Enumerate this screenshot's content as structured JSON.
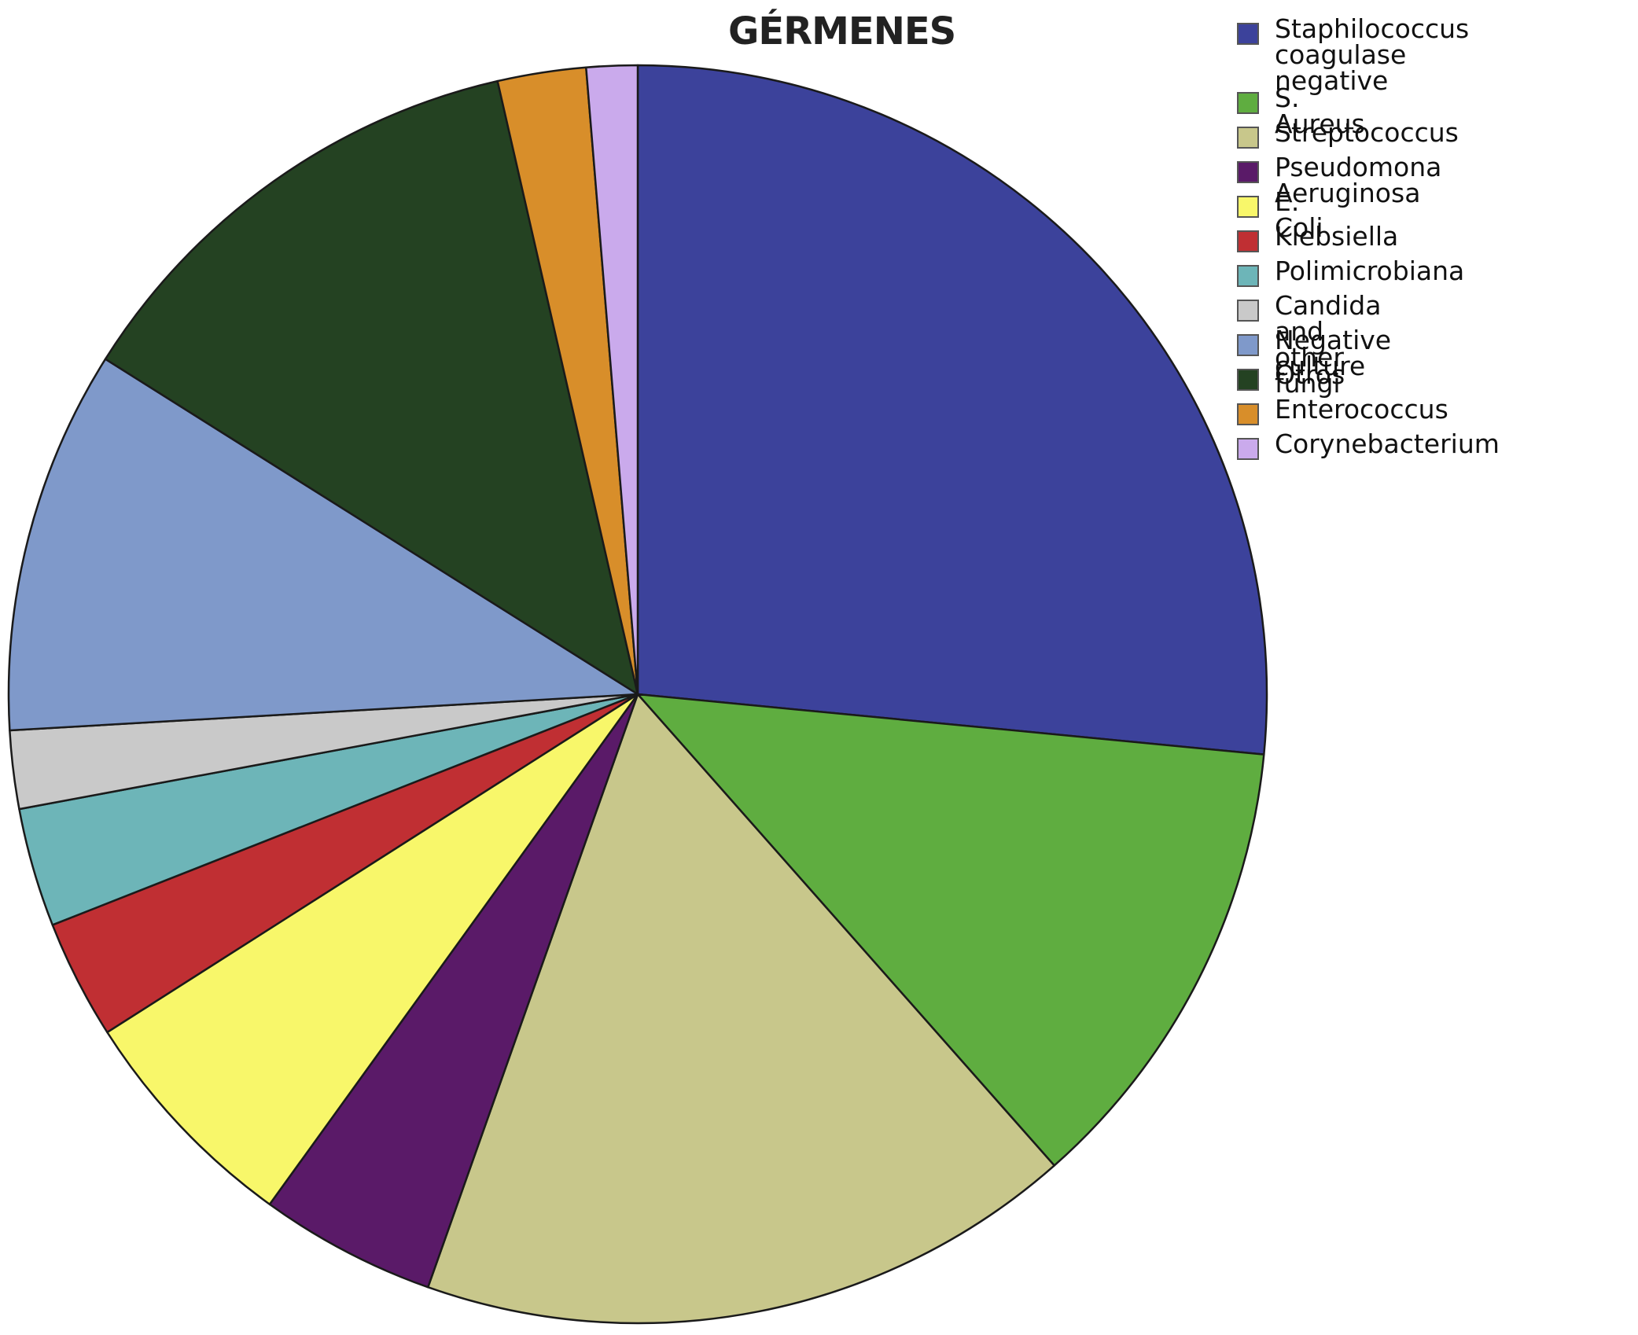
{
  "chart_data": {
    "type": "pie",
    "title": "GÉRMENES",
    "legend_position": "top-right",
    "start_angle_deg": 0,
    "direction": "clockwise",
    "slices": [
      {
        "label": "Staphilococcus coagulase\nnegative",
        "value": 30.4,
        "color": "#3c429b"
      },
      {
        "label": "S. Aureus",
        "value": 13.7,
        "color": "#5fad40"
      },
      {
        "label": "Streptococcus",
        "value": 19.4,
        "color": "#c8c78b"
      },
      {
        "label": "Pseudomona Aeruginosa",
        "value": 5.2,
        "color": "#5a1a68"
      },
      {
        "label": "E. Coli",
        "value": 6.9,
        "color": "#f8f76a"
      },
      {
        "label": "Klebsiella",
        "value": 3.5,
        "color": "#c02f33"
      },
      {
        "label": "Polimicrobiana",
        "value": 3.5,
        "color": "#6db5b8"
      },
      {
        "label": "Candida and other fungi",
        "value": 2.3,
        "color": "#c9c9c9"
      },
      {
        "label": "Negative culture",
        "value": 11.3,
        "color": "#7f99ca"
      },
      {
        "label": "Otros",
        "value": 14.3,
        "color": "#244222"
      },
      {
        "label": "Enterococcus",
        "value": 2.6,
        "color": "#d88e2a"
      },
      {
        "label": "Corynebacterium",
        "value": 1.5,
        "color": "#caaaec"
      }
    ]
  }
}
